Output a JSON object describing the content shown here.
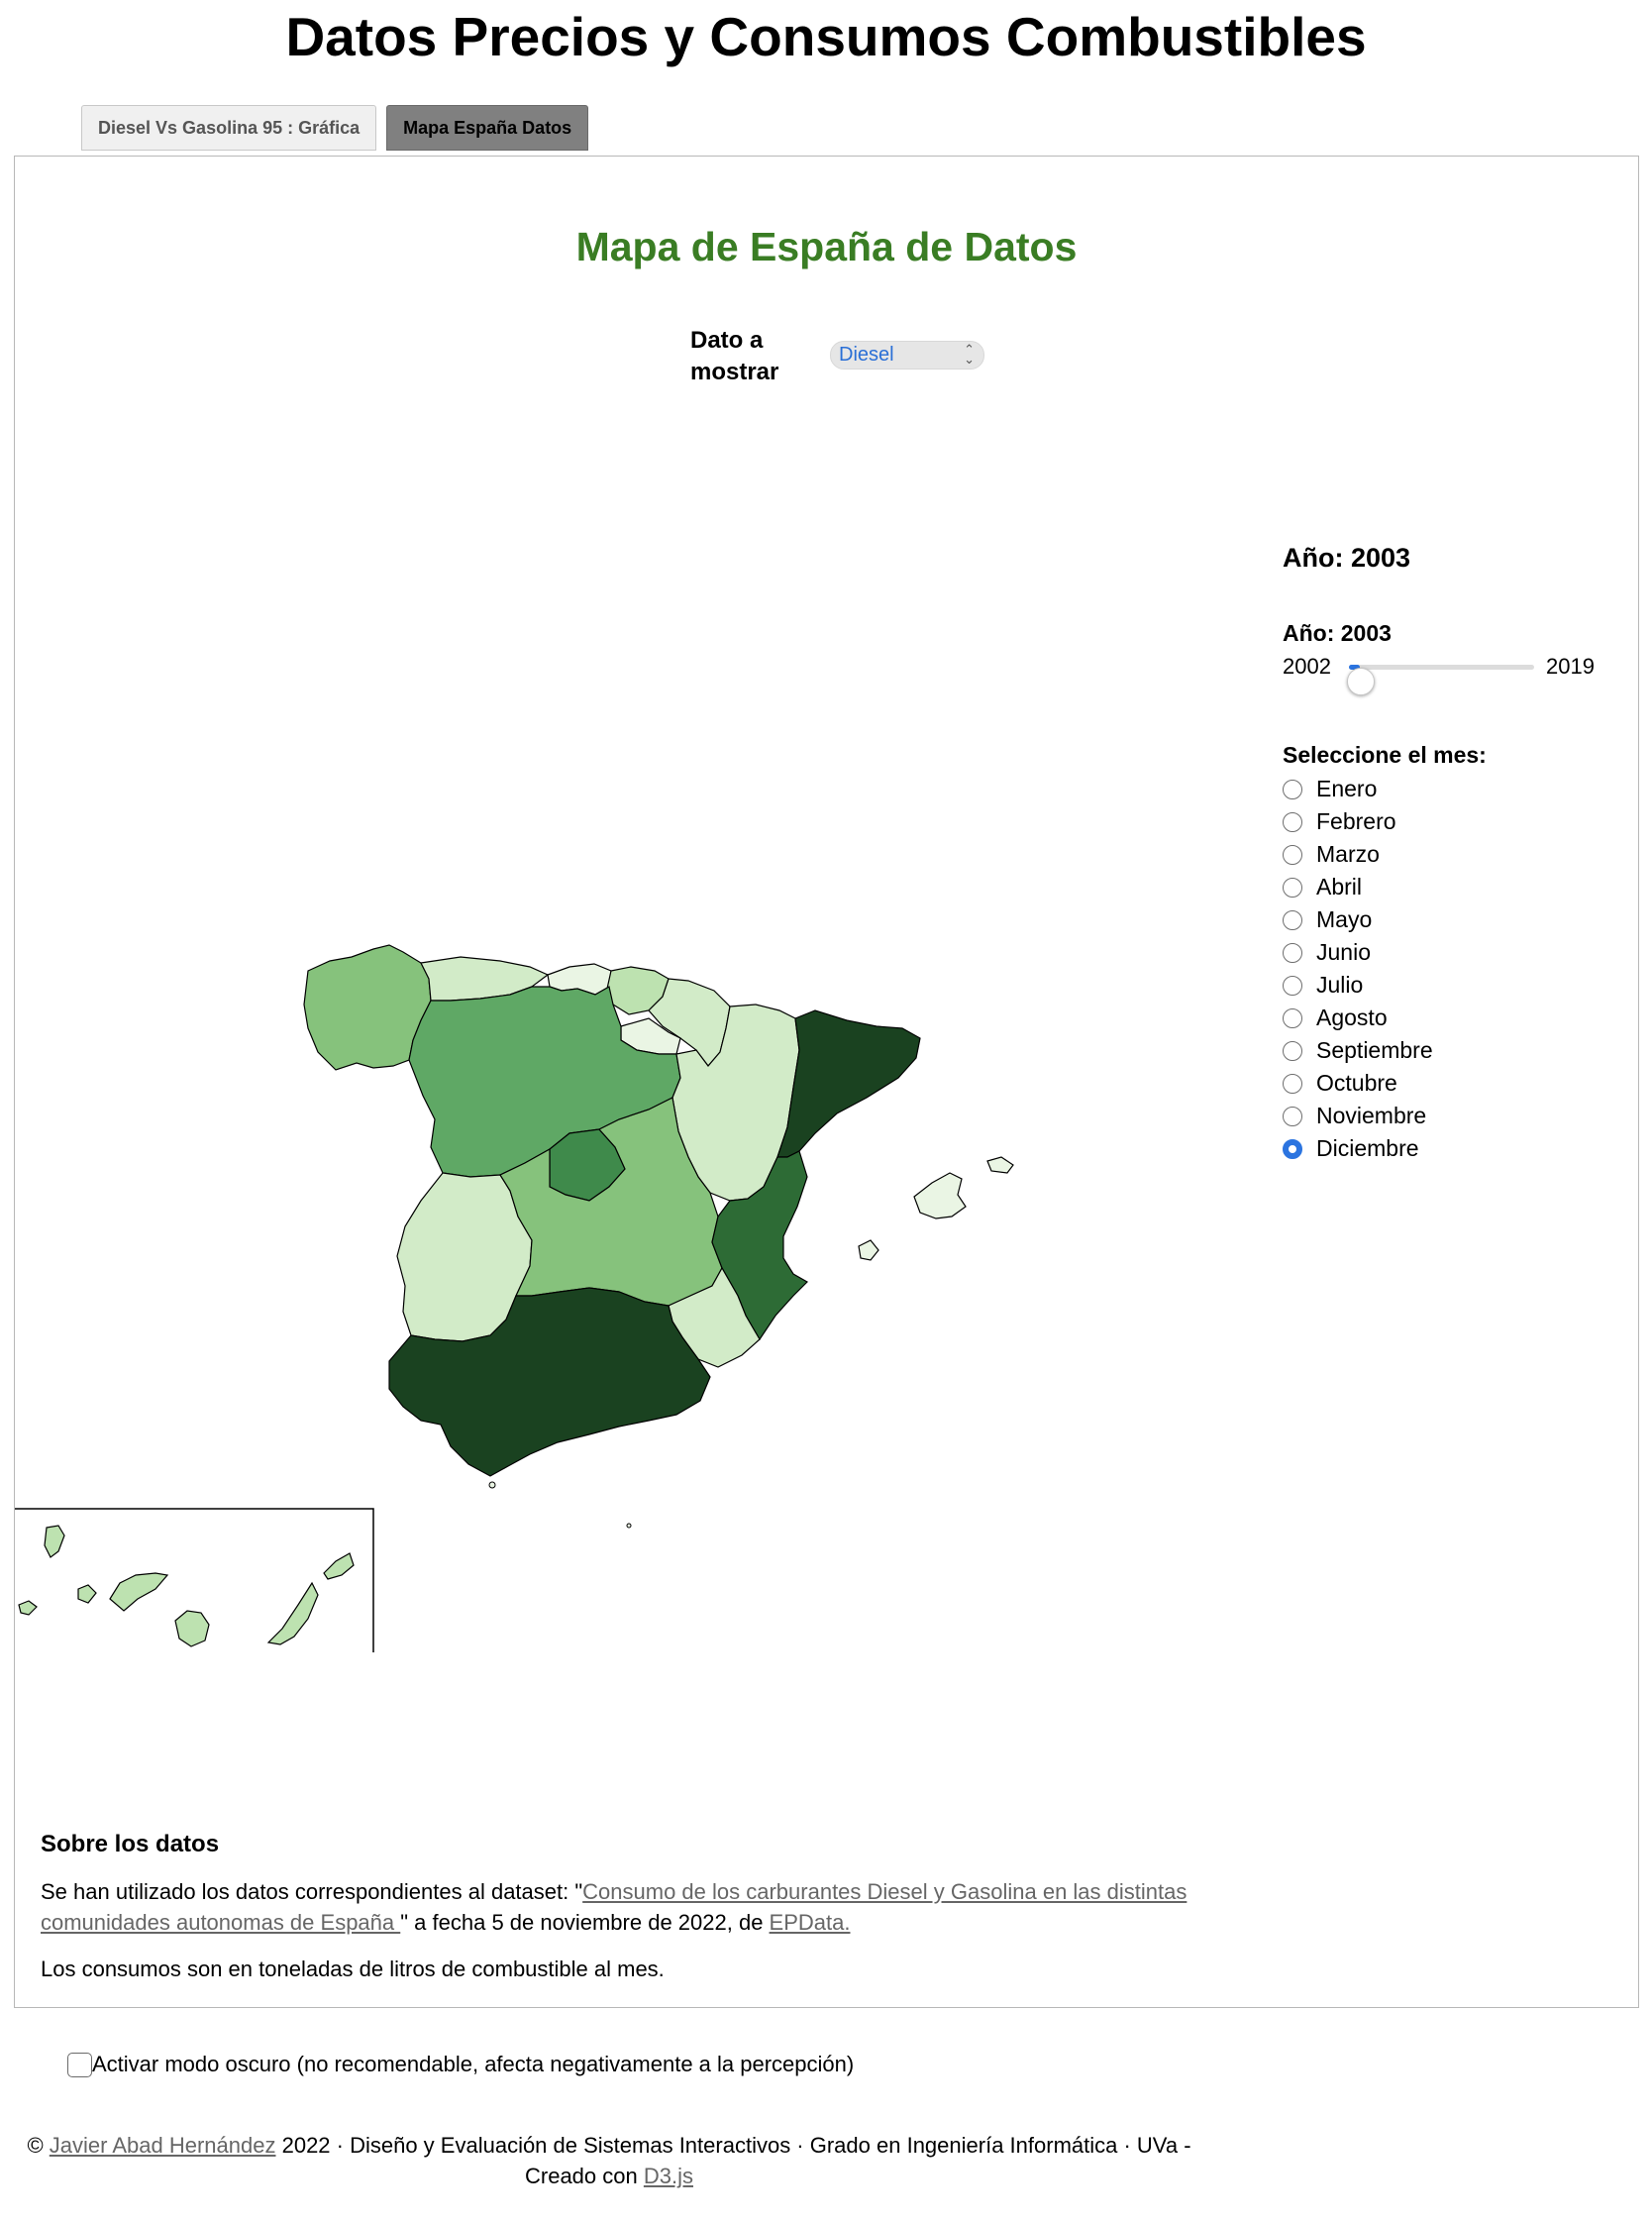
{
  "header": {
    "title": "Datos Precios y Consumos Combustibles"
  },
  "tabs": [
    {
      "label": "Diesel Vs Gasolina 95 : Gráfica",
      "active": false
    },
    {
      "label": "Mapa España Datos",
      "active": true
    }
  ],
  "map_view": {
    "title": "Mapa de España de Datos",
    "dato_label": "Dato a mostrar",
    "dato_value": "Diesel",
    "year_heading": "Año: 2003",
    "slider": {
      "label": "Año: 2003",
      "min": "2002",
      "max": "2019",
      "value": 2003
    },
    "month_label": "Seleccione el mes:",
    "months": [
      "Enero",
      "Febrero",
      "Marzo",
      "Abril",
      "Mayo",
      "Junio",
      "Julio",
      "Agosto",
      "Septiembre",
      "Octubre",
      "Noviembre",
      "Diciembre"
    ],
    "selected_month": "Diciembre",
    "colors": {
      "level1": "#eaf5e4",
      "level2": "#d2ebc8",
      "level3": "#bde2b0",
      "level4": "#86c27c",
      "level5": "#5fa865",
      "level6": "#3f8a4b",
      "level7": "#2d6b35",
      "level8": "#1a4220"
    }
  },
  "about": {
    "title": "Sobre los datos",
    "p1_prefix": "Se han utilizado los datos correspondientes al dataset: \"",
    "p1_link": "Consumo de los carburantes Diesel y Gasolina en las distintas comunidades autonomas de España ",
    "p1_middle": "\" a fecha 5 de noviembre de 2022, de ",
    "p1_link2": "EPData.",
    "p2": "Los consumos son en toneladas de litros de combustible al mes."
  },
  "dark_mode": {
    "label": "Activar modo oscuro (no recomendable, afecta negativamente a la percepción)"
  },
  "footer": {
    "copyright": "© ",
    "author": "Javier Abad Hernández",
    "text": " 2022 · Diseño y Evaluación de Sistemas Interactivos · Grado en Ingeniería Informática · UVa - Creado con ",
    "d3": "D3.js"
  }
}
